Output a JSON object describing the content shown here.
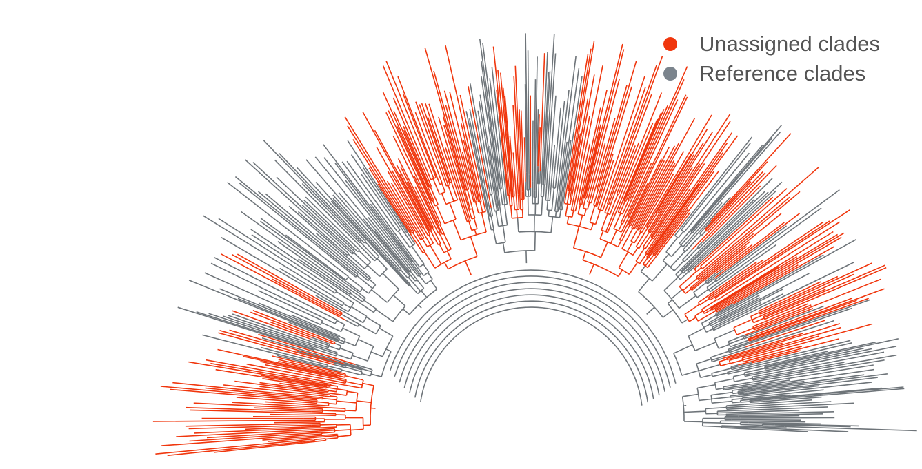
{
  "colors": {
    "unassigned": "#f0360d",
    "reference": "#6e7479"
  },
  "legend": {
    "items": [
      {
        "label": "Unassigned clades",
        "color": "#f0360d"
      },
      {
        "label": "Reference clades",
        "color": "#7b848d"
      }
    ]
  }
}
